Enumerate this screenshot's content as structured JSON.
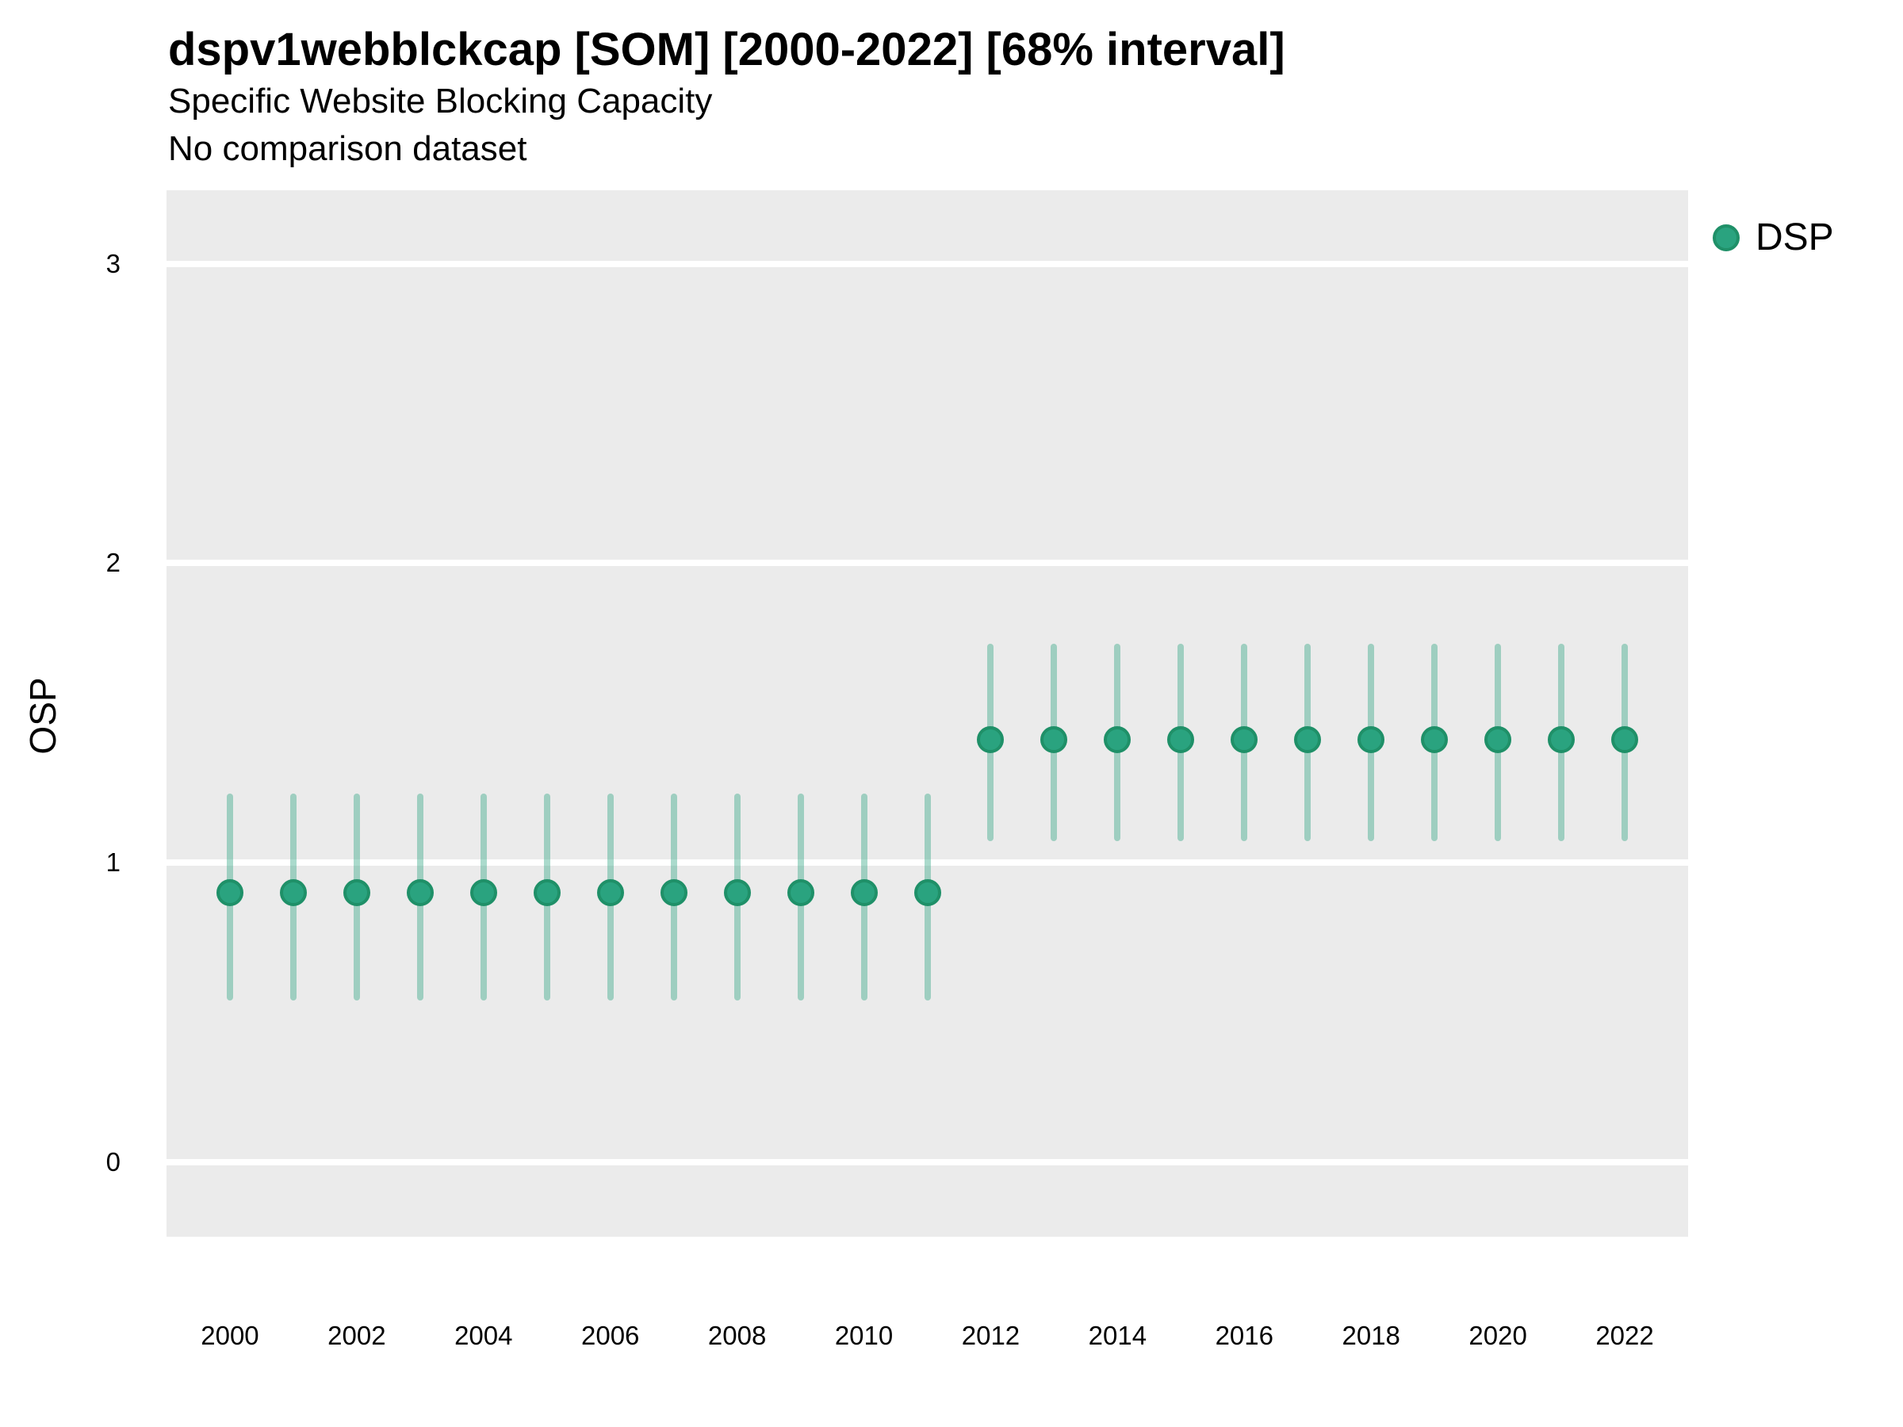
{
  "colors": {
    "accent": "#2aa37f",
    "accent_dark": "#1f9068",
    "interval_opacity": 0.4,
    "panel_bg": "#ebebeb",
    "grid": "#ffffff",
    "text": "#000000"
  },
  "chart_data": {
    "type": "scatter",
    "variant": "pointrange",
    "title": "dspv1webblckcap [SOM] [2000-2022] [68% interval]",
    "subtitle": "Specific Website Blocking Capacity",
    "note": "No comparison dataset",
    "xlabel": "",
    "ylabel": "OSP",
    "interval_level": "68%",
    "grid": "horizontal-major-only",
    "legend_position": "top-right",
    "legend_entries": [
      {
        "label": "DSP",
        "color": "#2aa37f"
      }
    ],
    "x": [
      2000,
      2001,
      2002,
      2003,
      2004,
      2005,
      2006,
      2007,
      2008,
      2009,
      2010,
      2011,
      2012,
      2013,
      2014,
      2015,
      2016,
      2017,
      2018,
      2019,
      2020,
      2021,
      2022
    ],
    "series": [
      {
        "name": "DSP",
        "mid": [
          0.9,
          0.9,
          0.9,
          0.9,
          0.9,
          0.9,
          0.9,
          0.9,
          0.9,
          0.9,
          0.9,
          0.9,
          1.41,
          1.41,
          1.41,
          1.41,
          1.41,
          1.41,
          1.41,
          1.41,
          1.41,
          1.41,
          1.41
        ],
        "lo": [
          0.54,
          0.54,
          0.54,
          0.54,
          0.54,
          0.54,
          0.54,
          0.54,
          0.54,
          0.54,
          0.54,
          0.54,
          1.07,
          1.07,
          1.07,
          1.07,
          1.07,
          1.07,
          1.07,
          1.07,
          1.07,
          1.07,
          1.07
        ],
        "hi": [
          1.23,
          1.23,
          1.23,
          1.23,
          1.23,
          1.23,
          1.23,
          1.23,
          1.23,
          1.23,
          1.23,
          1.23,
          1.73,
          1.73,
          1.73,
          1.73,
          1.73,
          1.73,
          1.73,
          1.73,
          1.73,
          1.73,
          1.73
        ]
      }
    ],
    "xticks": [
      2000,
      2002,
      2004,
      2006,
      2008,
      2010,
      2012,
      2014,
      2016,
      2018,
      2020,
      2022
    ],
    "yticks": [
      0,
      1,
      2,
      3
    ],
    "xlim": [
      1999,
      2023
    ],
    "ylim": [
      -0.25,
      3.245
    ]
  }
}
